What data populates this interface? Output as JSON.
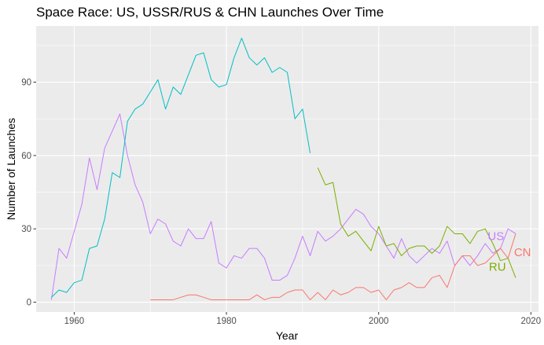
{
  "chart_data": {
    "type": "line",
    "title": "Space Race: US, USSR/RUS & CHN Launches Over Time",
    "xlabel": "Year",
    "ylabel": "Number of Launches",
    "xlim": [
      1955,
      2021
    ],
    "ylim": [
      -4,
      113
    ],
    "xticks": [
      1960,
      1980,
      2000,
      2020
    ],
    "yticks": [
      0,
      30,
      60,
      90
    ],
    "x_minor_ticks": [
      1970,
      1990,
      2010
    ],
    "y_minor_ticks": [
      15,
      45,
      75,
      105
    ],
    "grid": true,
    "legend": "none",
    "panel_background": "#ebebeb",
    "grid_color": "#ffffff",
    "series": [
      {
        "key": "us",
        "color": "#c77cff",
        "label": "US",
        "label_at": [
          2015.4,
          27
        ],
        "x": [
          1957,
          1958,
          1959,
          1960,
          1961,
          1962,
          1963,
          1964,
          1965,
          1966,
          1967,
          1968,
          1969,
          1970,
          1971,
          1972,
          1973,
          1974,
          1975,
          1976,
          1977,
          1978,
          1979,
          1980,
          1981,
          1982,
          1983,
          1984,
          1985,
          1986,
          1987,
          1988,
          1989,
          1990,
          1991,
          1992,
          1993,
          1994,
          1995,
          1996,
          1997,
          1998,
          1999,
          2000,
          2001,
          2002,
          2003,
          2004,
          2005,
          2006,
          2007,
          2008,
          2009,
          2010,
          2011,
          2012,
          2013,
          2014,
          2015,
          2016,
          2017,
          2018
        ],
        "y": [
          1,
          22,
          18,
          29,
          40,
          59,
          46,
          63,
          70,
          77,
          60,
          48,
          41,
          28,
          34,
          32,
          25,
          23,
          30,
          26,
          26,
          33,
          16,
          14,
          19,
          18,
          22,
          22,
          18,
          9,
          9,
          11,
          18,
          27,
          19,
          29,
          25,
          27,
          30,
          34,
          38,
          36,
          31,
          28,
          23,
          18,
          26,
          19,
          16,
          19,
          22,
          20,
          25,
          15,
          19,
          15,
          19,
          24,
          20,
          22,
          30,
          28
        ]
      },
      {
        "key": "ussr",
        "color": "#00bfc4",
        "label": "",
        "x": [
          1957,
          1958,
          1959,
          1960,
          1961,
          1962,
          1963,
          1964,
          1965,
          1966,
          1967,
          1968,
          1969,
          1970,
          1971,
          1972,
          1973,
          1974,
          1975,
          1976,
          1977,
          1978,
          1979,
          1980,
          1981,
          1982,
          1983,
          1984,
          1985,
          1986,
          1987,
          1988,
          1989,
          1990,
          1991
        ],
        "y": [
          2,
          5,
          4,
          8,
          9,
          22,
          23,
          34,
          53,
          51,
          74,
          79,
          81,
          86,
          91,
          79,
          88,
          85,
          93,
          101,
          102,
          91,
          88,
          89,
          100,
          108,
          100,
          97,
          100,
          94,
          96,
          94,
          75,
          79,
          61
        ]
      },
      {
        "key": "rus",
        "color": "#7cae00",
        "label": "RU",
        "label_at": [
          2015.6,
          14.5
        ],
        "x": [
          1992,
          1993,
          1994,
          1995,
          1996,
          1997,
          1998,
          1999,
          2000,
          2001,
          2002,
          2003,
          2004,
          2005,
          2006,
          2007,
          2008,
          2009,
          2010,
          2011,
          2012,
          2013,
          2014,
          2015,
          2016,
          2017,
          2018
        ],
        "y": [
          55,
          48,
          49,
          32,
          27,
          29,
          25,
          21,
          31,
          23,
          24,
          19,
          22,
          23,
          23,
          20,
          23,
          31,
          28,
          28,
          24,
          29,
          30,
          24,
          17,
          18,
          10
        ]
      },
      {
        "key": "chn",
        "color": "#f8766d",
        "label": "CN",
        "label_at": [
          2018.9,
          20.5
        ],
        "x": [
          1970,
          1971,
          1972,
          1973,
          1974,
          1975,
          1976,
          1977,
          1978,
          1979,
          1980,
          1981,
          1982,
          1983,
          1984,
          1985,
          1986,
          1987,
          1988,
          1989,
          1990,
          1991,
          1992,
          1993,
          1994,
          1995,
          1996,
          1997,
          1998,
          1999,
          2000,
          2001,
          2002,
          2003,
          2004,
          2005,
          2006,
          2007,
          2008,
          2009,
          2010,
          2011,
          2012,
          2013,
          2014,
          2015,
          2016,
          2017,
          2018
        ],
        "y": [
          1,
          1,
          1,
          1,
          2,
          3,
          3,
          2,
          1,
          1,
          1,
          1,
          1,
          1,
          3,
          1,
          2,
          2,
          4,
          5,
          5,
          1,
          4,
          1,
          5,
          3,
          4,
          6,
          6,
          4,
          5,
          1,
          5,
          6,
          8,
          6,
          6,
          10,
          11,
          6,
          15,
          19,
          19,
          15,
          16,
          19,
          22,
          18,
          28
        ]
      }
    ]
  }
}
